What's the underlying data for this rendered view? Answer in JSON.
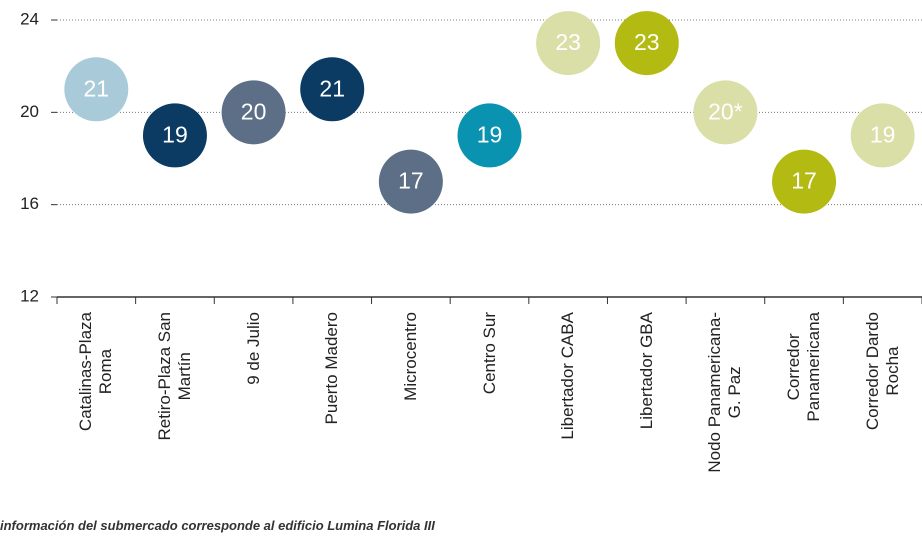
{
  "chart_data": {
    "type": "dot",
    "categories": [
      "Catalinas-Plaza\nRoma",
      "Retiro-Plaza San\nMartín",
      "9 de Julio",
      "Puerto Madero",
      "Microcentro",
      "Centro Sur",
      "Libertador CABA",
      "Libertador GBA",
      "Nodo Panamericana-\nG. Paz",
      "Corredor\nPanamericana",
      "Corredor Dardo\nRocha"
    ],
    "values": [
      21,
      19,
      20,
      21,
      17,
      19,
      23,
      23,
      20,
      17,
      19
    ],
    "value_labels": [
      "21",
      "19",
      "20",
      "21",
      "17",
      "19",
      "23",
      "23",
      "20*",
      "17",
      "19"
    ],
    "colors": [
      "#a9cbd9",
      "#0b3a63",
      "#5d6f86",
      "#0b3a63",
      "#5d6f86",
      "#0a93b0",
      "#d9dfa7",
      "#b3ba12",
      "#d9dfa7",
      "#b3ba12",
      "#d9dfa7"
    ],
    "ylim": [
      12,
      24
    ],
    "yticks": [
      12,
      16,
      20,
      24
    ],
    "grid": true,
    "footnote": "información del submercado corresponde al edificio Lumina Florida III"
  }
}
